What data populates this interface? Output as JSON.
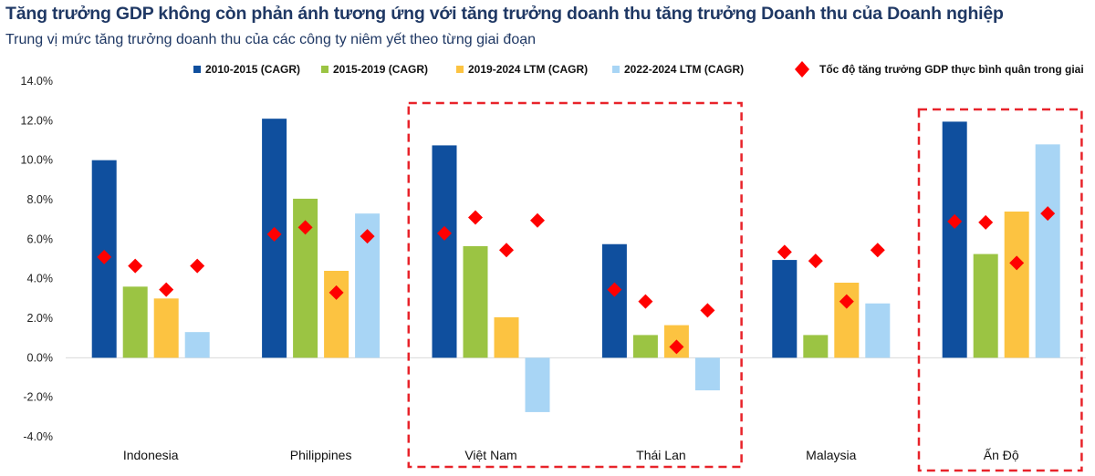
{
  "title": "Tăng trưởng GDP không còn phản ánh tương ứng với tăng trưởng doanh thu tăng trưởng Doanh thu của Doanh nghiệp",
  "subtitle": "Trung vị mức tăng trưởng doanh thu của các công ty niêm yết theo từng giai đoạn",
  "chart_data": {
    "type": "bar",
    "title": "Tăng trưởng GDP không còn phản ánh tương ứng với tăng trưởng doanh thu tăng trưởng Doanh thu của Doanh nghiệp",
    "subtitle": "Trung vị mức tăng trưởng doanh thu của các công ty niêm yết theo từng giai đoạn",
    "categories": [
      "Indonesia",
      "Philippines",
      "Việt Nam",
      "Thái Lan",
      "Malaysia",
      "Ấn Độ"
    ],
    "ylim": [
      -4,
      14
    ],
    "yticks": [
      "-4.0%",
      "-2.0%",
      "0.0%",
      "2.0%",
      "4.0%",
      "6.0%",
      "8.0%",
      "10.0%",
      "12.0%",
      "14.0%"
    ],
    "grid": false,
    "legend_position": "top",
    "series": [
      {
        "name": "2010-2015 (CAGR)",
        "color": "#0f4f9e",
        "values": [
          10.0,
          12.1,
          10.75,
          5.75,
          4.95,
          11.95
        ]
      },
      {
        "name": "2015-2019 (CAGR)",
        "color": "#9bc443",
        "values": [
          3.6,
          8.05,
          5.65,
          1.15,
          1.15,
          5.25
        ]
      },
      {
        "name": "2019-2024 LTM (CAGR)",
        "color": "#fcc341",
        "values": [
          3.0,
          4.4,
          2.05,
          1.65,
          3.8,
          7.4
        ]
      },
      {
        "name": "2022-2024 LTM (CAGR)",
        "color": "#a8d5f5",
        "values": [
          1.3,
          7.3,
          -2.75,
          -1.65,
          2.75,
          10.8
        ]
      }
    ],
    "markers": {
      "name": "Tốc độ tăng trưởng GDP thực bình quân trong giai",
      "color": "#ff0000",
      "shape": "diamond",
      "values": [
        [
          5.1,
          4.65,
          3.45,
          4.65
        ],
        [
          6.25,
          6.6,
          3.3,
          6.15
        ],
        [
          6.3,
          7.1,
          5.45,
          6.95
        ],
        [
          3.45,
          2.85,
          0.55,
          2.4
        ],
        [
          5.35,
          4.9,
          2.85,
          5.45
        ],
        [
          6.9,
          6.85,
          4.8,
          7.3
        ]
      ]
    },
    "highlight_boxes": [
      [
        "Việt Nam",
        "Thái Lan"
      ],
      [
        "Ấn Độ"
      ]
    ],
    "highlight_color": "#e8232a"
  }
}
